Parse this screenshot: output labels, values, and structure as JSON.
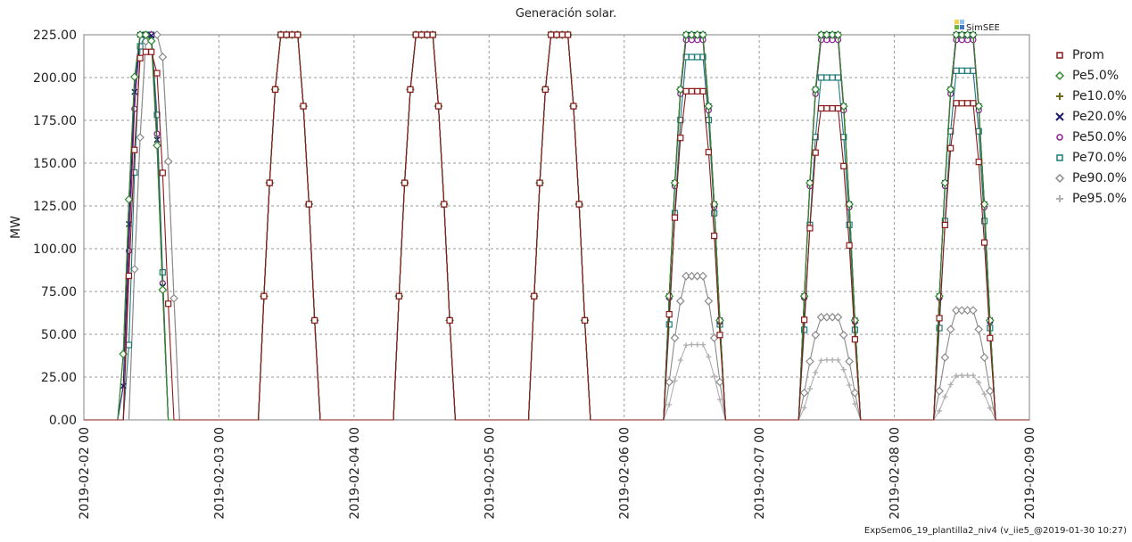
{
  "chart_data": {
    "type": "line",
    "title": "Generación solar.",
    "xlabel": "",
    "ylabel": "MW",
    "ylim": [
      0,
      225
    ],
    "xlim": [
      "2019-02-02 00",
      "2019-02-09 00"
    ],
    "y_ticks": [
      "0.00",
      "25.00",
      "50.00",
      "75.00",
      "100.00",
      "125.00",
      "150.00",
      "175.00",
      "200.00",
      "225.00"
    ],
    "x_ticks": [
      "2019-02-02 00",
      "2019-02-03 00",
      "2019-02-04 00",
      "2019-02-05 00",
      "2019-02-06 00",
      "2019-02-07 00",
      "2019-02-08 00",
      "2019-02-09 00"
    ],
    "grid": true,
    "legend_position": "right",
    "days": [
      "2019-02-02",
      "2019-02-03",
      "2019-02-04",
      "2019-02-05",
      "2019-02-06",
      "2019-02-07",
      "2019-02-08"
    ],
    "hourly_profile_note_hours": [
      7,
      8,
      9,
      10,
      11,
      12,
      13,
      14,
      15,
      16,
      17,
      18,
      19,
      20
    ],
    "series": [
      {
        "name": "Prom",
        "color": "#8b1a1a",
        "marker": "square",
        "peaks": [
          215,
          225,
          225,
          225,
          192,
          182,
          185
        ],
        "starts": [
          7,
          7,
          7,
          7,
          7,
          7,
          7
        ],
        "ends": [
          18,
          20,
          20,
          20,
          20,
          20,
          20
        ]
      },
      {
        "name": "Pe5.0%",
        "color": "#2e8b2e",
        "marker": "diamond",
        "peaks": [
          225,
          225,
          225,
          225,
          225,
          225,
          225
        ],
        "starts": [
          6.6,
          7,
          7,
          7,
          7,
          7,
          7
        ],
        "ends": [
          17,
          20,
          20,
          20,
          20,
          20,
          20
        ]
      },
      {
        "name": "Pe10.0%",
        "color": "#6b6b1a",
        "marker": "plus",
        "peaks": [
          225,
          225,
          225,
          225,
          225,
          225,
          225
        ],
        "starts": [
          6.6,
          7,
          7,
          7,
          7,
          7,
          7
        ],
        "ends": [
          17,
          20,
          20,
          20,
          20,
          20,
          20
        ]
      },
      {
        "name": "Pe20.0%",
        "color": "#1a1a6b",
        "marker": "x",
        "peaks": [
          225,
          225,
          225,
          225,
          225,
          225,
          225
        ],
        "starts": [
          6.8,
          7,
          7,
          7,
          7,
          7,
          7
        ],
        "ends": [
          17,
          20,
          20,
          20,
          20,
          20,
          20
        ]
      },
      {
        "name": "Pe50.0%",
        "color": "#8b1a8b",
        "marker": "circle",
        "peaks": [
          225,
          225,
          225,
          225,
          222,
          222,
          222
        ],
        "starts": [
          7,
          7,
          7,
          7,
          7,
          7,
          7
        ],
        "ends": [
          17,
          20,
          20,
          20,
          20,
          20,
          20
        ]
      },
      {
        "name": "Pe70.0%",
        "color": "#1a7b7b",
        "marker": "square",
        "peaks": [
          225,
          225,
          225,
          225,
          212,
          200,
          204
        ],
        "starts": [
          7.6,
          7,
          7,
          7,
          7.2,
          7.2,
          7.2
        ],
        "ends": [
          17,
          20,
          20,
          20,
          20,
          20,
          20
        ]
      },
      {
        "name": "Pe90.0%",
        "color": "#8a8a8a",
        "marker": "diamond",
        "peaks": [
          225,
          225,
          225,
          225,
          84,
          60,
          64
        ],
        "starts": [
          8,
          7,
          7,
          7,
          7.2,
          7.2,
          7.2
        ],
        "ends": [
          19,
          20,
          20,
          20,
          20,
          20,
          20
        ]
      },
      {
        "name": "Pe95.0%",
        "color": "#b0b0b0",
        "marker": "plus",
        "peaks": [
          225,
          225,
          225,
          225,
          44,
          35,
          26
        ],
        "starts": [
          8,
          7,
          7,
          7,
          7.4,
          7.4,
          7.4
        ],
        "ends": [
          19,
          20,
          20,
          20,
          20,
          20,
          20
        ]
      }
    ]
  },
  "logo": {
    "text": "SimSEE"
  },
  "footer": "ExpSem06_19_plantilla2_niv4 (v_iie5_@2019-01-30 10:27)"
}
